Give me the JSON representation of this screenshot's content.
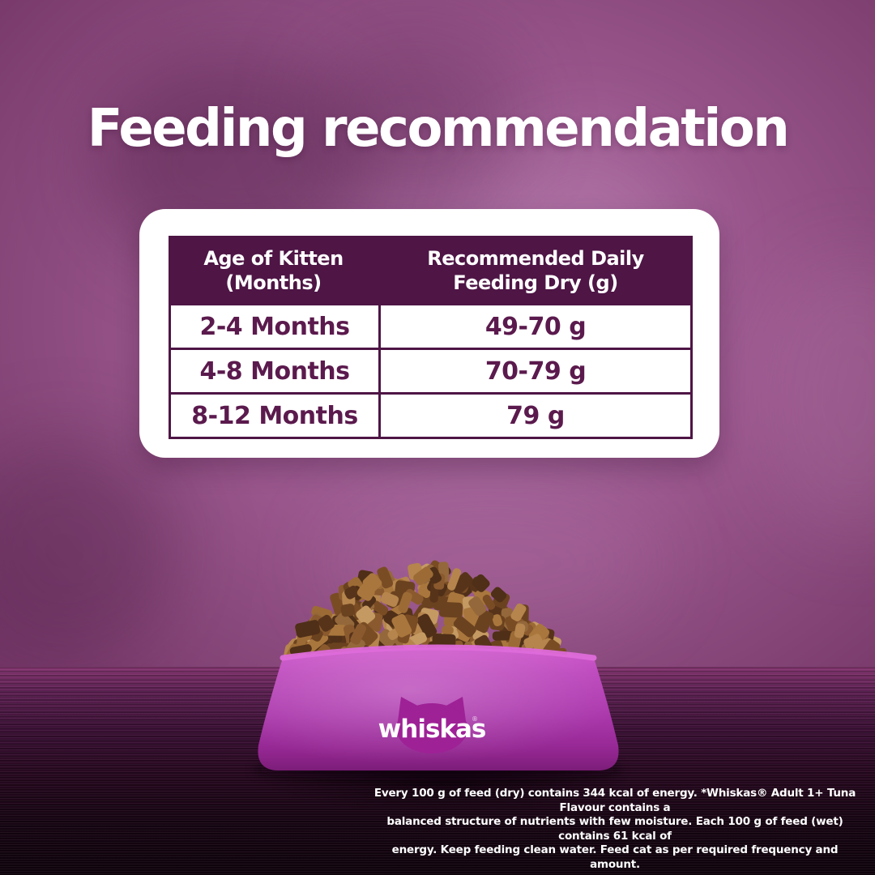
{
  "title": "Feeding recommendation",
  "table": {
    "headers": [
      {
        "line1": "Age of Kitten",
        "line2": "(Months)"
      },
      {
        "line1": "Recommended Daily",
        "line2": "Feeding Dry (g)"
      }
    ],
    "rows": [
      {
        "age": "2-4 Months",
        "amount": "49-70 g"
      },
      {
        "age": "4-8 Months",
        "amount": "70-79 g"
      },
      {
        "age": "8-12 Months",
        "amount": "79 g"
      }
    ]
  },
  "bowl": {
    "brand": "whiskas",
    "mark": "®"
  },
  "disclaimer": {
    "lines": [
      "Every 100 g of feed (dry) contains 344 kcal of energy. *Whiskas® Adult 1+ Tuna Flavour contains a",
      "balanced structure of nutrients with few moisture. Each 100 g of feed (wet) contains 61 kcal of",
      "energy. Keep feeding clean water. Feed cat as per required frequency and amount."
    ]
  },
  "colors": {
    "background_purple": "#99568c",
    "header_plum": "#4e1545",
    "table_text_plum": "#5b1a4d",
    "bowl_magenta": "#b13fae",
    "cat_head_magenta": "#9e2196",
    "floor_dark": "#27081f",
    "text_white": "#ffffff",
    "kibble_brown": "#8a5a2e"
  }
}
